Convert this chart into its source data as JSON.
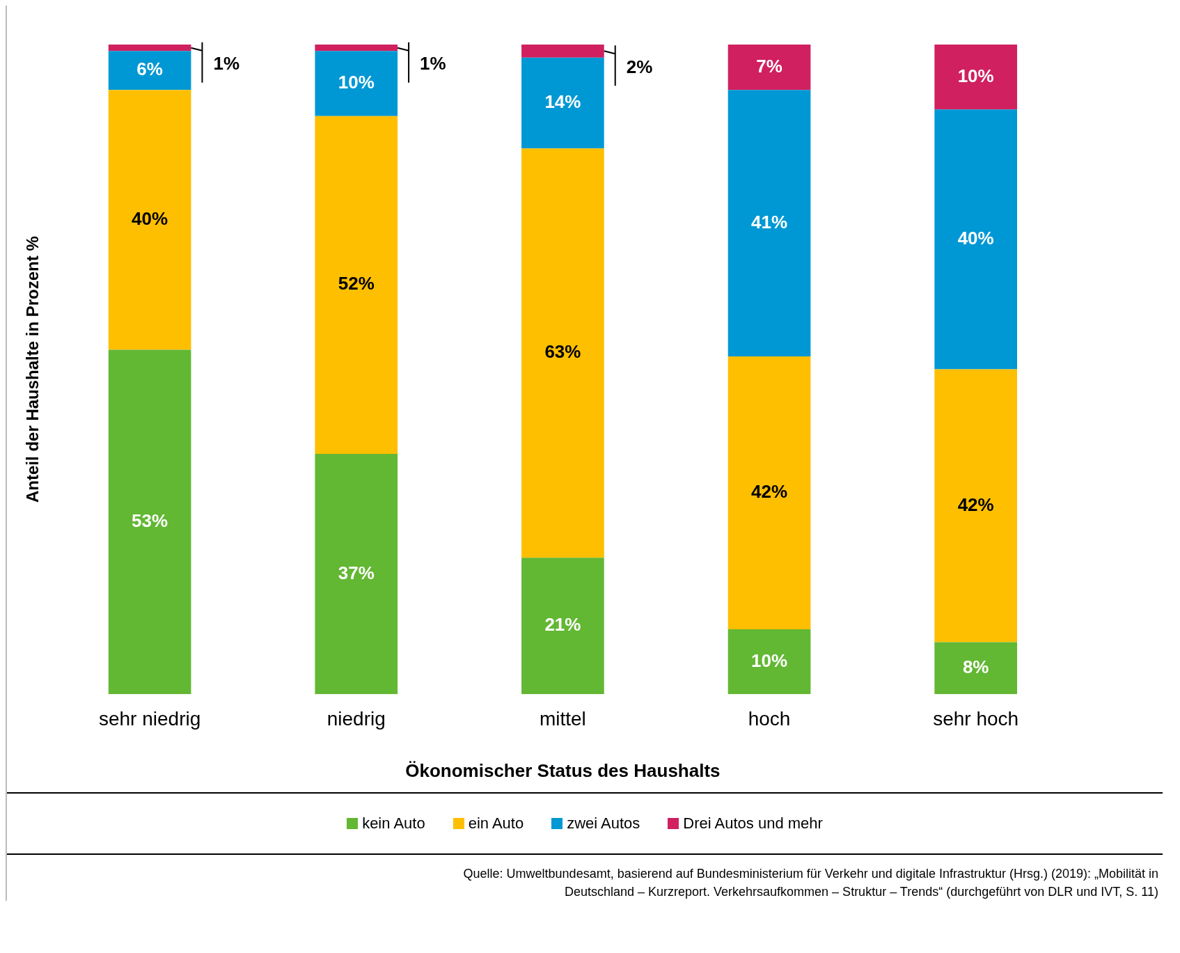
{
  "chart_data": {
    "type": "bar",
    "stacked": true,
    "xlabel": "Ökonomischer Status des Haushalts",
    "ylabel": "Anteil der Haushalte in Prozent %",
    "categories": [
      "sehr niedrig",
      "niedrig",
      "mittel",
      "hoch",
      "sehr hoch"
    ],
    "ylim": [
      0,
      100
    ],
    "tick_labels": "x",
    "grid": false,
    "legend": "bottom",
    "series": [
      {
        "name": "kein Auto",
        "color": "#62b733",
        "values": [
          53,
          37,
          21,
          10,
          8
        ],
        "value_labels": [
          "53%",
          "37%",
          "21%",
          "10%",
          "8%"
        ]
      },
      {
        "name": "ein Auto",
        "color": "#fdbf00",
        "values": [
          40,
          52,
          63,
          42,
          42
        ],
        "value_labels": [
          "40%",
          "52%",
          "63%",
          "42%",
          "42%"
        ]
      },
      {
        "name": "zwei Autos",
        "color": "#0098d4",
        "values": [
          6,
          10,
          14,
          41,
          40
        ],
        "value_labels": [
          "6%",
          "10%",
          "14%",
          "41%",
          "40%"
        ]
      },
      {
        "name": "Drei Autos und mehr",
        "color": "#d0205f",
        "values": [
          1,
          1,
          2,
          7,
          10
        ],
        "value_labels": [
          "1%",
          "1%",
          "2%",
          "7%",
          "10%"
        ]
      }
    ],
    "annotations": [
      "Quelle: Umweltbundesamt, basierend auf Bundesministerium für Verkehr und digitale Infrastruktur (Hrsg.) (2019): „Mobilität in Deutschland – Kurzreport. Verkehrsaufkommen – Struktur – Trends“ (durchgeführt von DLR und IVT, S. 11)"
    ]
  }
}
